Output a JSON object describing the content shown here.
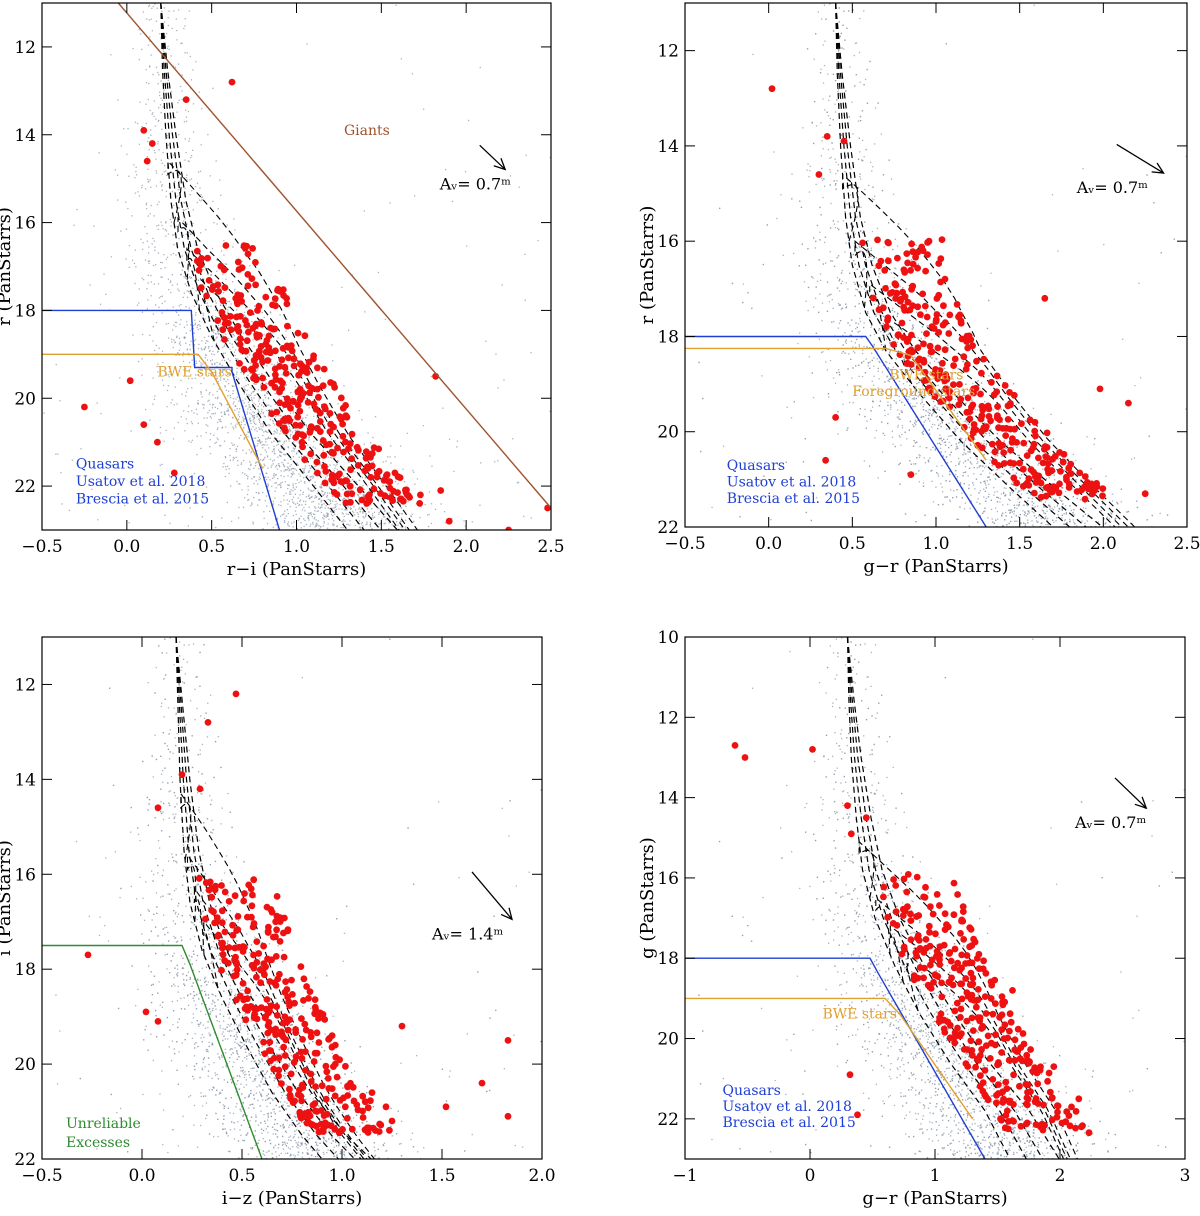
{
  "colors": {
    "scatter": "#8e9aaa",
    "member": "#ee1111",
    "quasar": "#1f3fd4",
    "bwe": "#e0a030",
    "giants": "#a0522d",
    "unreliable": "#2e8b2e",
    "isochrone": "#000000"
  },
  "chart_data": [
    {
      "type": "scatter",
      "xlabel": "r−i (PanStarrs)",
      "ylabel": "r (PanStarrs)",
      "xlim": [
        -0.5,
        2.5
      ],
      "ylim": [
        23,
        11
      ],
      "xticks": [
        "−0.5",
        "0.0",
        "0.5",
        "1.0",
        "1.5",
        "2.0",
        "2.5"
      ],
      "xtick_values": [
        -0.5,
        0,
        0.5,
        1,
        1.5,
        2,
        2.5
      ],
      "yticks": [
        "12",
        "14",
        "16",
        "18",
        "20",
        "22"
      ],
      "ytick_values": [
        12,
        14,
        16,
        18,
        20,
        22
      ],
      "extinction_label": "Aᵥ= 0.7ᵐ",
      "extinction_vector": {
        "dx": 0.15,
        "dy": 0.55
      },
      "annotations": [
        {
          "text": "Giants",
          "color": "giants",
          "x": 1.28,
          "y": 14.0
        },
        {
          "text": "BWE stars",
          "color": "bwe",
          "x": 0.18,
          "y": 19.5
        },
        {
          "text": "Quasars",
          "color": "quasar",
          "x": -0.3,
          "y": 21.6
        },
        {
          "text": "Usatov et al. 2018",
          "color": "quasar",
          "x": -0.3,
          "y": 22.0
        },
        {
          "text": "Brescia et al. 2015",
          "color": "quasar",
          "x": -0.3,
          "y": 22.4
        }
      ],
      "lines": [
        {
          "name": "giants-boundary",
          "color": "giants",
          "points": [
            [
              -0.05,
              11
            ],
            [
              2.5,
              22.5
            ]
          ]
        },
        {
          "name": "quasar-boundary",
          "color": "quasar",
          "points": [
            [
              -0.5,
              18
            ],
            [
              0.38,
              18
            ],
            [
              0.4,
              19.3
            ],
            [
              0.62,
              19.3
            ],
            [
              0.62,
              19.4
            ],
            [
              0.9,
              23
            ]
          ]
        },
        {
          "name": "bwe-boundary",
          "color": "bwe",
          "points": [
            [
              -0.5,
              19
            ],
            [
              0.42,
              19
            ],
            [
              0.5,
              19.4
            ],
            [
              0.8,
              21.6
            ]
          ]
        }
      ],
      "ridge": {
        "x0": 0.22,
        "top": [
          [
            0.2,
            11
          ],
          [
            0.21,
            12.5
          ],
          [
            0.23,
            14
          ],
          [
            0.26,
            15.5
          ],
          [
            0.3,
            16.6
          ],
          [
            0.38,
            17.6
          ],
          [
            0.5,
            18.6
          ],
          [
            0.65,
            19.6
          ],
          [
            0.85,
            20.8
          ],
          [
            1.1,
            22
          ],
          [
            1.3,
            23
          ]
        ]
      },
      "loops": [
        {
          "ages_offset": 0,
          "top": 14.6,
          "wx": 0.55
        },
        {
          "ages_offset": 0.06,
          "top": 15.9,
          "wx": 0.45
        },
        {
          "ages_offset": 0.12,
          "top": 16.6,
          "wx": 0.38
        },
        {
          "ages_offset": 0.18,
          "top": 17.3,
          "wx": 0.3
        }
      ],
      "members": [
        [
          0.35,
          13.2
        ],
        [
          0.62,
          12.8
        ],
        [
          0.1,
          13.9
        ],
        [
          0.12,
          14.6
        ],
        [
          0.15,
          14.2
        ],
        [
          -0.25,
          20.2
        ],
        [
          0.02,
          19.6
        ],
        [
          0.18,
          21
        ],
        [
          0.28,
          21.7
        ],
        [
          0.1,
          20.6
        ],
        [
          1.82,
          19.5
        ],
        [
          1.85,
          22.1
        ],
        [
          1.9,
          22.8
        ],
        [
          2.25,
          23
        ],
        [
          2.48,
          22.5
        ],
        [
          1.73,
          22.2
        ],
        [
          1.55,
          21.9
        ],
        [
          1.58,
          21.7
        ]
      ]
    },
    {
      "type": "scatter",
      "xlabel": "g−r (PanStarrs)",
      "ylabel": "r (PanStarrs)",
      "xlim": [
        -0.5,
        2.5
      ],
      "ylim": [
        22,
        11
      ],
      "xticks": [
        "−0.5",
        "0.0",
        "0.5",
        "1.0",
        "1.5",
        "2.0",
        "2.5"
      ],
      "xtick_values": [
        -0.5,
        0,
        0.5,
        1,
        1.5,
        2,
        2.5
      ],
      "yticks": [
        "12",
        "14",
        "16",
        "18",
        "20",
        "22"
      ],
      "ytick_values": [
        12,
        14,
        16,
        18,
        20,
        22
      ],
      "extinction_label": "Aᵥ= 0.7ᵐ",
      "extinction_vector": {
        "dx": 0.28,
        "dy": 0.6
      },
      "annotations": [
        {
          "text": "BWE stars",
          "color": "bwe",
          "x": 0.72,
          "y": 18.9
        },
        {
          "text": "Foreground stars",
          "color": "bwe",
          "x": 0.5,
          "y": 19.25
        },
        {
          "text": "Quasars",
          "color": "quasar",
          "x": -0.25,
          "y": 20.8
        },
        {
          "text": "Usatov et al. 2018",
          "color": "quasar",
          "x": -0.25,
          "y": 21.15
        },
        {
          "text": "Brescia et al. 2015",
          "color": "quasar",
          "x": -0.25,
          "y": 21.5
        }
      ],
      "lines": [
        {
          "name": "quasar-boundary",
          "color": "quasar",
          "points": [
            [
              -0.5,
              18
            ],
            [
              0.58,
              18
            ],
            [
              0.62,
              18.2
            ],
            [
              1.3,
              22
            ]
          ]
        },
        {
          "name": "bwe-boundary",
          "color": "bwe",
          "points": [
            [
              -0.5,
              18.25
            ],
            [
              0.7,
              18.25
            ],
            [
              0.85,
              18.4
            ],
            [
              1.3,
              20.6
            ]
          ]
        }
      ],
      "ridge": {
        "x0": 0.42,
        "top": [
          [
            0.4,
            11
          ],
          [
            0.41,
            12.5
          ],
          [
            0.43,
            14
          ],
          [
            0.46,
            15.5
          ],
          [
            0.5,
            16.5
          ],
          [
            0.58,
            17.5
          ],
          [
            0.7,
            18.3
          ],
          [
            0.9,
            19.2
          ],
          [
            1.15,
            20.2
          ],
          [
            1.45,
            21.2
          ],
          [
            1.7,
            22
          ]
        ]
      },
      "loops": [
        {
          "ages_offset": 0,
          "top": 14.6,
          "wx": 0.65
        },
        {
          "ages_offset": 0.08,
          "top": 16.0,
          "wx": 0.55
        },
        {
          "ages_offset": 0.16,
          "top": 16.9,
          "wx": 0.45
        },
        {
          "ages_offset": 0.24,
          "top": 17.6,
          "wx": 0.35
        }
      ],
      "members": [
        [
          0.02,
          12.8
        ],
        [
          0.35,
          13.8
        ],
        [
          0.45,
          13.9
        ],
        [
          0.3,
          14.6
        ],
        [
          0.34,
          20.6
        ],
        [
          0.4,
          19.7
        ],
        [
          1.65,
          17.2
        ],
        [
          2.15,
          19.4
        ],
        [
          2.25,
          21.3
        ],
        [
          1.98,
          19.1
        ],
        [
          0.85,
          20.9
        ]
      ]
    },
    {
      "type": "scatter",
      "xlabel": "i−z (PanStarrs)",
      "ylabel": "i (PanStarrs)",
      "xlim": [
        -0.5,
        2.0
      ],
      "ylim": [
        22,
        11
      ],
      "xticks": [
        "−0.5",
        "0.0",
        "0.5",
        "1.0",
        "1.5",
        "2.0"
      ],
      "xtick_values": [
        -0.5,
        0,
        0.5,
        1,
        1.5,
        2
      ],
      "yticks": [
        "12",
        "14",
        "16",
        "18",
        "20",
        "22"
      ],
      "ytick_values": [
        12,
        14,
        16,
        18,
        20,
        22
      ],
      "extinction_label": "Aᵥ= 1.4ᵐ",
      "extinction_vector": {
        "dx": 0.2,
        "dy": 1.0
      },
      "annotations": [
        {
          "text": "Unreliable",
          "color": "unreliable",
          "x": -0.38,
          "y": 21.35
        },
        {
          "text": "Excesses",
          "color": "unreliable",
          "x": -0.38,
          "y": 21.75
        }
      ],
      "lines": [
        {
          "name": "unreliable-boundary",
          "color": "unreliable",
          "points": [
            [
              -0.5,
              17.5
            ],
            [
              0.2,
              17.5
            ],
            [
              0.24,
              17.9
            ],
            [
              0.6,
              22
            ]
          ]
        }
      ],
      "ridge": {
        "x0": 0.18,
        "top": [
          [
            0.17,
            11
          ],
          [
            0.18,
            12.5
          ],
          [
            0.19,
            14
          ],
          [
            0.21,
            15.5
          ],
          [
            0.24,
            16.6
          ],
          [
            0.3,
            17.6
          ],
          [
            0.4,
            18.6
          ],
          [
            0.52,
            19.6
          ],
          [
            0.65,
            20.6
          ],
          [
            0.8,
            21.5
          ],
          [
            0.9,
            22
          ]
        ]
      },
      "loops": [
        {
          "ages_offset": 0,
          "top": 14.3,
          "wx": 0.35
        },
        {
          "ages_offset": 0.04,
          "top": 15.6,
          "wx": 0.28
        },
        {
          "ages_offset": 0.08,
          "top": 16.3,
          "wx": 0.24
        },
        {
          "ages_offset": 0.12,
          "top": 17.0,
          "wx": 0.2
        }
      ],
      "members": [
        [
          0.47,
          12.2
        ],
        [
          0.33,
          12.8
        ],
        [
          0.2,
          13.9
        ],
        [
          0.29,
          14.2
        ],
        [
          0.08,
          14.6
        ],
        [
          -0.27,
          17.7
        ],
        [
          0.02,
          18.9
        ],
        [
          0.08,
          19.1
        ],
        [
          1.83,
          19.5
        ],
        [
          1.7,
          20.4
        ],
        [
          1.83,
          21.1
        ],
        [
          1.52,
          20.9
        ],
        [
          1.3,
          19.2
        ],
        [
          1.25,
          21.2
        ],
        [
          1.22,
          20.9
        ],
        [
          1.15,
          20.6
        ]
      ]
    },
    {
      "type": "scatter",
      "xlabel": "g−r (PanStarrs)",
      "ylabel": "g (PanStarrs)",
      "xlim": [
        -1,
        3
      ],
      "ylim": [
        23,
        10
      ],
      "xticks": [
        "−1",
        "0",
        "1",
        "2",
        "3"
      ],
      "xtick_values": [
        -1,
        0,
        1,
        2,
        3
      ],
      "yticks": [
        "10",
        "12",
        "14",
        "16",
        "18",
        "20",
        "22"
      ],
      "ytick_values": [
        10,
        12,
        14,
        16,
        18,
        20,
        22
      ],
      "extinction_label": "Aᵥ= 0.7ᵐ",
      "extinction_vector": {
        "dx": 0.25,
        "dy": 0.75
      },
      "annotations": [
        {
          "text": "BWE stars",
          "color": "bwe",
          "x": 0.1,
          "y": 19.5
        },
        {
          "text": "Quasars",
          "color": "quasar",
          "x": -0.7,
          "y": 21.4
        },
        {
          "text": "Usatov et al. 2018",
          "color": "quasar",
          "x": -0.7,
          "y": 21.8
        },
        {
          "text": "Brescia et al. 2015",
          "color": "quasar",
          "x": -0.7,
          "y": 22.2
        }
      ],
      "lines": [
        {
          "name": "quasar-boundary",
          "color": "quasar",
          "points": [
            [
              -1,
              18
            ],
            [
              0.48,
              18
            ],
            [
              0.55,
              18.4
            ],
            [
              1.4,
              23
            ]
          ]
        },
        {
          "name": "bwe-boundary",
          "color": "bwe",
          "points": [
            [
              -1,
              19
            ],
            [
              0.6,
              19
            ],
            [
              0.72,
              19.4
            ],
            [
              1.3,
              22
            ]
          ]
        }
      ],
      "ridge": {
        "x0": 0.32,
        "top": [
          [
            0.3,
            10
          ],
          [
            0.31,
            11.5
          ],
          [
            0.33,
            13
          ],
          [
            0.37,
            14.5
          ],
          [
            0.42,
            15.8
          ],
          [
            0.52,
            17
          ],
          [
            0.68,
            18.2
          ],
          [
            0.88,
            19.4
          ],
          [
            1.12,
            20.6
          ],
          [
            1.4,
            21.8
          ],
          [
            1.6,
            23
          ]
        ]
      },
      "loops": [
        {
          "ages_offset": 0,
          "top": 15.1,
          "wx": 0.72
        },
        {
          "ages_offset": 0.08,
          "top": 16.5,
          "wx": 0.58
        },
        {
          "ages_offset": 0.16,
          "top": 17.2,
          "wx": 0.48
        },
        {
          "ages_offset": 0.24,
          "top": 17.9,
          "wx": 0.38
        }
      ],
      "members": [
        [
          -0.6,
          12.7
        ],
        [
          -0.52,
          13.0
        ],
        [
          0.02,
          12.8
        ],
        [
          0.3,
          14.2
        ],
        [
          0.45,
          14.5
        ],
        [
          0.33,
          14.9
        ],
        [
          0.32,
          20.9
        ],
        [
          0.38,
          21.9
        ],
        [
          1.62,
          18.8
        ],
        [
          2.15,
          21.5
        ],
        [
          1.95,
          20.7
        ]
      ]
    }
  ]
}
